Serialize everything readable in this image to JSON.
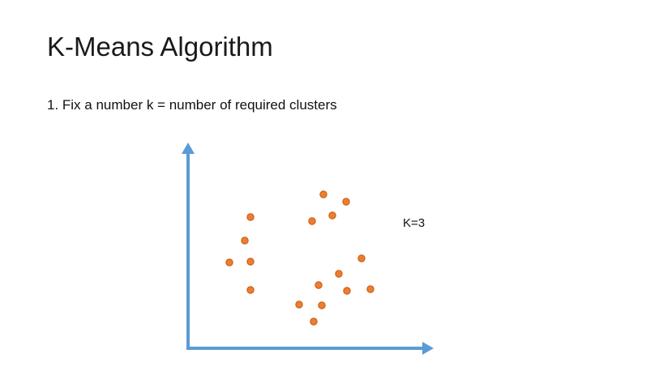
{
  "slide": {
    "title": "K-Means Algorithm",
    "bullet": "1. Fix a number k = number of required clusters",
    "k_label": "K=3"
  },
  "colors": {
    "axis": "#5b9bd5",
    "point_fill": "#ed7d31",
    "point_stroke": "#c55a11",
    "text": "#111111"
  }
}
